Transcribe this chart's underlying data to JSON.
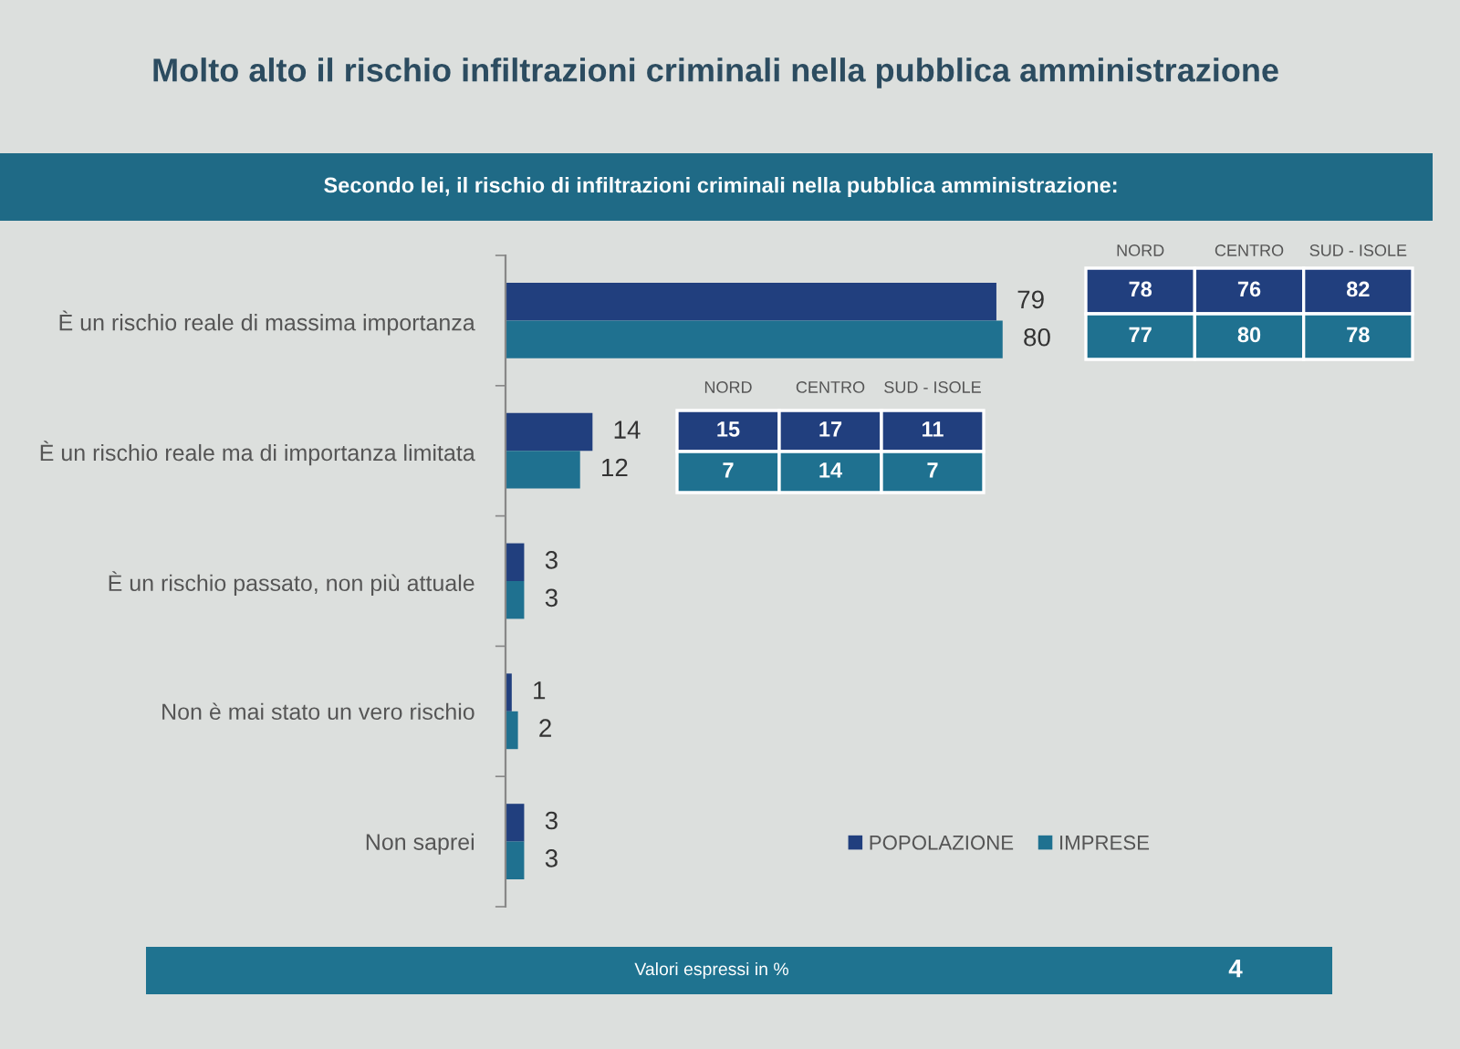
{
  "chart_data": {
    "type": "bar",
    "orientation": "horizontal",
    "title": "Molto alto il rischio infiltrazioni criminali nella pubblica amministrazione",
    "subtitle": "Secondo lei, il rischio di infiltrazioni criminali nella pubblica amministrazione:",
    "categories": [
      "È un rischio reale di massima importanza",
      "È un rischio reale ma di importanza limitata",
      "È un rischio passato, non più attuale",
      "Non è mai stato un vero rischio",
      "Non saprei"
    ],
    "series": [
      {
        "name": "POPOLAZIONE",
        "color": "#213f7e",
        "values": [
          79,
          14,
          3,
          1,
          3
        ]
      },
      {
        "name": "IMPRESE",
        "color": "#1f7190",
        "values": [
          80,
          12,
          3,
          2,
          3
        ]
      }
    ],
    "data_labels": true,
    "legend": "bottom right",
    "tick_labels": "y",
    "annotations": [
      "NORD",
      "CENTRO",
      "SUD - ISOLE",
      "78",
      "76",
      "82",
      "77",
      "80",
      "78",
      "NORD",
      "CENTRO",
      "SUD - ISOLE",
      "15",
      "17",
      "11",
      "7",
      "14",
      "7",
      "Valori espressi in %",
      "4"
    ]
  }
}
